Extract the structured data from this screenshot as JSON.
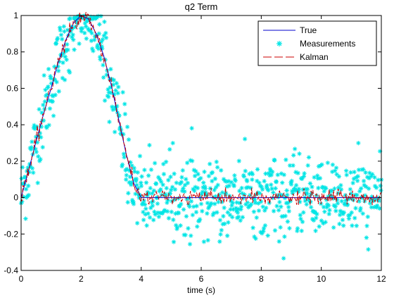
{
  "chart_data": {
    "type": "line",
    "title": "q2 Term",
    "xlabel": "time (s)",
    "ylabel": "",
    "xlim": [
      0,
      12
    ],
    "ylim": [
      -0.4,
      1
    ],
    "xticks": [
      0,
      2,
      4,
      6,
      8,
      10,
      12
    ],
    "xtick_labels": [
      "0",
      "2",
      "4",
      "6",
      "8",
      "10",
      "12"
    ],
    "yticks": [
      -0.4,
      -0.2,
      0,
      0.2,
      0.4,
      0.6,
      0.8,
      1
    ],
    "ytick_labels": [
      "-0.4",
      "-0.2",
      "0",
      "0.2",
      "0.4",
      "0.6",
      "0.8",
      "1"
    ],
    "grid": false,
    "legend_position": "top-right",
    "series": [
      {
        "name": "True",
        "style": "solid-line",
        "color": "#0000cc",
        "x": [
          0,
          0.25,
          0.5,
          0.75,
          1,
          1.25,
          1.5,
          1.75,
          2,
          2.25,
          2.5,
          2.75,
          3,
          3.25,
          3.5,
          3.75,
          4,
          5,
          6,
          7,
          8,
          9,
          10,
          11,
          12
        ],
        "y": [
          0,
          0.15,
          0.31,
          0.46,
          0.6,
          0.75,
          0.87,
          0.96,
          1.0,
          0.98,
          0.9,
          0.78,
          0.62,
          0.43,
          0.24,
          0.08,
          0,
          0,
          0,
          0,
          0,
          0,
          0,
          0,
          0
        ]
      },
      {
        "name": "Measurements",
        "style": "asterisk-markers",
        "color": "#00e5e5",
        "noise_std": 0.1,
        "x_step": 0.015
      },
      {
        "name": "Kalman",
        "style": "dashed-line",
        "color": "#cc0000",
        "noise_std": 0.02
      }
    ]
  }
}
